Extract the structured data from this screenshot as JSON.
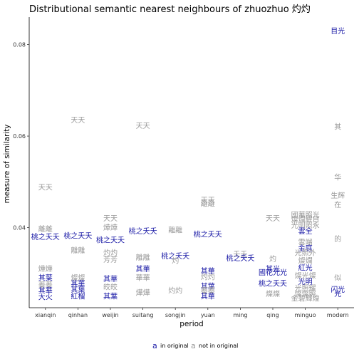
{
  "chart_data": {
    "type": "scatter",
    "title": "Distributional semantic nearest neighbours of zhuozhuo 灼灼",
    "xlabel": "period",
    "ylabel": "measure of similarity",
    "categories": [
      "xianqin",
      "qinhan",
      "weijin",
      "suitang",
      "songjin",
      "yuan",
      "ming",
      "qing",
      "minguo",
      "modern"
    ],
    "yticks": [
      0.04,
      0.06,
      0.08
    ],
    "ylim": [
      0.0225,
      0.086
    ],
    "grid": false,
    "colors": {
      "in_original": "#1a1aa6",
      "not_in_original": "#999999"
    },
    "legend": {
      "position": "bottom",
      "items": [
        {
          "key": "in_original",
          "glyph": "a",
          "label": "in original"
        },
        {
          "key": "not_in_original",
          "glyph": "a",
          "label": "not in original"
        }
      ]
    },
    "points": [
      {
        "period": "xianqin",
        "word": "天天",
        "y": 0.0488,
        "in_original": false
      },
      {
        "period": "xianqin",
        "word": "離離",
        "y": 0.0397,
        "in_original": false
      },
      {
        "period": "xianqin",
        "word": "桃之夭夭",
        "y": 0.038,
        "in_original": true
      },
      {
        "period": "xianqin",
        "word": "燁燁",
        "y": 0.031,
        "in_original": false
      },
      {
        "period": "xianqin",
        "word": "其葉",
        "y": 0.029,
        "in_original": true
      },
      {
        "period": "xianqin",
        "word": "蓁蓁",
        "y": 0.0275,
        "in_original": false
      },
      {
        "period": "xianqin",
        "word": "其華",
        "y": 0.0262,
        "in_original": true
      },
      {
        "period": "xianqin",
        "word": "大火",
        "y": 0.0248,
        "in_original": true
      },
      {
        "period": "qinhan",
        "word": "天天",
        "y": 0.0635,
        "in_original": false
      },
      {
        "period": "qinhan",
        "word": "桃之夭夭",
        "y": 0.0382,
        "in_original": true
      },
      {
        "period": "qinhan",
        "word": "離離",
        "y": 0.035,
        "in_original": false
      },
      {
        "period": "qinhan",
        "word": "燦燦",
        "y": 0.029,
        "in_original": false
      },
      {
        "period": "qinhan",
        "word": "其華",
        "y": 0.0278,
        "in_original": true
      },
      {
        "period": "qinhan",
        "word": "其葉",
        "y": 0.0265,
        "in_original": true
      },
      {
        "period": "qinhan",
        "word": "紅榴",
        "y": 0.025,
        "in_original": true
      },
      {
        "period": "weijin",
        "word": "天天",
        "y": 0.042,
        "in_original": false
      },
      {
        "period": "weijin",
        "word": "燁燁",
        "y": 0.04,
        "in_original": false
      },
      {
        "period": "weijin",
        "word": "桃之夭夭",
        "y": 0.0373,
        "in_original": true
      },
      {
        "period": "weijin",
        "word": "灼灼",
        "y": 0.0345,
        "in_original": false
      },
      {
        "period": "weijin",
        "word": "芳芳",
        "y": 0.033,
        "in_original": false
      },
      {
        "period": "weijin",
        "word": "其華",
        "y": 0.0288,
        "in_original": true
      },
      {
        "period": "weijin",
        "word": "皎皎",
        "y": 0.027,
        "in_original": false
      },
      {
        "period": "weijin",
        "word": "其葉",
        "y": 0.025,
        "in_original": true
      },
      {
        "period": "suitang",
        "word": "天天",
        "y": 0.0623,
        "in_original": false
      },
      {
        "period": "suitang",
        "word": "桃之夭夭",
        "y": 0.0392,
        "in_original": true
      },
      {
        "period": "suitang",
        "word": "離離",
        "y": 0.0335,
        "in_original": false
      },
      {
        "period": "suitang",
        "word": "其華",
        "y": 0.031,
        "in_original": true
      },
      {
        "period": "suitang",
        "word": "華華",
        "y": 0.029,
        "in_original": false
      },
      {
        "period": "suitang",
        "word": "燁燁",
        "y": 0.0258,
        "in_original": false
      },
      {
        "period": "songjin",
        "word": "離離",
        "y": 0.0395,
        "in_original": false
      },
      {
        "period": "songjin",
        "word": "桃之夭夭",
        "y": 0.0338,
        "in_original": true
      },
      {
        "period": "songjin",
        "word": "灼",
        "y": 0.0328,
        "in_original": false
      },
      {
        "period": "songjin",
        "word": "灼灼",
        "y": 0.0262,
        "in_original": false
      },
      {
        "period": "yuan",
        "word": "天天",
        "y": 0.046,
        "in_original": false
      },
      {
        "period": "yuan",
        "word": "離離",
        "y": 0.0452,
        "in_original": false
      },
      {
        "period": "yuan",
        "word": "桃之夭夭",
        "y": 0.0385,
        "in_original": true
      },
      {
        "period": "yuan",
        "word": "其華",
        "y": 0.0305,
        "in_original": true
      },
      {
        "period": "yuan",
        "word": "灼灼",
        "y": 0.0292,
        "in_original": false
      },
      {
        "period": "yuan",
        "word": "其葉",
        "y": 0.0272,
        "in_original": true
      },
      {
        "period": "yuan",
        "word": "蓁蓁",
        "y": 0.0262,
        "in_original": false
      },
      {
        "period": "yuan",
        "word": "其華",
        "y": 0.025,
        "in_original": true
      },
      {
        "period": "ming",
        "word": "夭夭",
        "y": 0.0342,
        "in_original": false
      },
      {
        "period": "ming",
        "word": "桃之夭夭",
        "y": 0.0333,
        "in_original": true
      },
      {
        "period": "qing",
        "word": "天天",
        "y": 0.042,
        "in_original": false
      },
      {
        "period": "qing",
        "word": "灼",
        "y": 0.0332,
        "in_original": false
      },
      {
        "period": "qing",
        "word": "其光",
        "y": 0.031,
        "in_original": true
      },
      {
        "period": "qing",
        "word": "國花光光",
        "y": 0.0302,
        "in_original": true
      },
      {
        "period": "qing",
        "word": "桃之夭夭",
        "y": 0.0278,
        "in_original": true
      },
      {
        "period": "qing",
        "word": "燦燦",
        "y": 0.0255,
        "in_original": false
      },
      {
        "period": "minguo",
        "word": "國華照光",
        "y": 0.0428,
        "in_original": false
      },
      {
        "period": "minguo",
        "word": "燦爛耀目",
        "y": 0.0418,
        "in_original": false
      },
      {
        "period": "minguo",
        "word": "光明照永",
        "y": 0.0405,
        "in_original": false
      },
      {
        "period": "minguo",
        "word": "雲全",
        "y": 0.0392,
        "in_original": true
      },
      {
        "period": "minguo",
        "word": "雲端",
        "y": 0.0368,
        "in_original": false
      },
      {
        "period": "minguo",
        "word": "金庭",
        "y": 0.0355,
        "in_original": true
      },
      {
        "period": "minguo",
        "word": "光照外",
        "y": 0.0345,
        "in_original": false
      },
      {
        "period": "minguo",
        "word": "燦爛",
        "y": 0.0328,
        "in_original": false
      },
      {
        "period": "minguo",
        "word": "紅光",
        "y": 0.0312,
        "in_original": true
      },
      {
        "period": "minguo",
        "word": "燦光燦",
        "y": 0.0295,
        "in_original": false
      },
      {
        "period": "minguo",
        "word": "光明",
        "y": 0.0282,
        "in_original": true
      },
      {
        "period": "minguo",
        "word": "光照耀",
        "y": 0.0268,
        "in_original": false
      },
      {
        "period": "minguo",
        "word": "燦燦照",
        "y": 0.0255,
        "in_original": false
      },
      {
        "period": "minguo",
        "word": "金碧輝煌",
        "y": 0.0245,
        "in_original": false
      },
      {
        "period": "modern",
        "word": "目光",
        "y": 0.083,
        "in_original": true
      },
      {
        "period": "modern",
        "word": "其",
        "y": 0.062,
        "in_original": false
      },
      {
        "period": "modern",
        "word": "华",
        "y": 0.051,
        "in_original": false
      },
      {
        "period": "modern",
        "word": "生辉",
        "y": 0.047,
        "in_original": false
      },
      {
        "period": "modern",
        "word": "在",
        "y": 0.045,
        "in_original": false
      },
      {
        "period": "modern",
        "word": "的",
        "y": 0.0375,
        "in_original": false
      },
      {
        "period": "modern",
        "word": "似",
        "y": 0.029,
        "in_original": false
      },
      {
        "period": "modern",
        "word": "闪光",
        "y": 0.0265,
        "in_original": true
      },
      {
        "period": "modern",
        "word": "光",
        "y": 0.0255,
        "in_original": true
      }
    ]
  }
}
